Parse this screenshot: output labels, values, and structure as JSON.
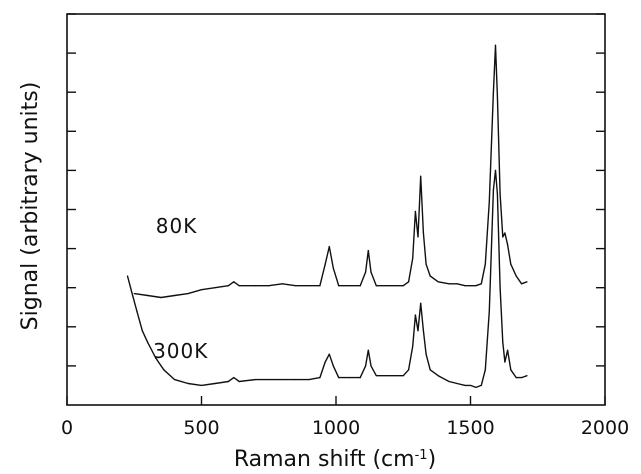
{
  "chart_data": {
    "type": "line",
    "xlabel": "Raman shift (cm",
    "xlabel_sup": "-1",
    "xlabel_close": ")",
    "ylabel": "Signal (arbitrary units)",
    "xlim": [
      0,
      2000
    ],
    "ylim": [
      0,
      100
    ],
    "x_ticks": [
      0,
      500,
      1000,
      1500,
      2000
    ],
    "x_tick_labels": [
      "0",
      "500",
      "1000",
      "1500",
      "2000"
    ],
    "y_ticks": [
      10,
      20,
      30,
      40,
      50,
      60,
      70,
      80,
      90,
      100
    ],
    "y_tick_labels_shown": false,
    "grid": false,
    "series": [
      {
        "name": "80K",
        "label_at": [
          330,
          44
        ],
        "x": [
          250,
          300,
          350,
          400,
          450,
          500,
          550,
          600,
          620,
          640,
          700,
          750,
          800,
          850,
          900,
          940,
          960,
          975,
          990,
          1010,
          1050,
          1090,
          1110,
          1120,
          1130,
          1150,
          1200,
          1250,
          1270,
          1285,
          1295,
          1305,
          1315,
          1325,
          1335,
          1350,
          1380,
          1420,
          1450,
          1480,
          1500,
          1520,
          1540,
          1555,
          1570,
          1585,
          1593,
          1600,
          1610,
          1620,
          1628,
          1638,
          1650,
          1670,
          1690,
          1710
        ],
        "y": [
          28.5,
          28,
          27.5,
          28,
          28.5,
          29.5,
          30,
          30.5,
          31.5,
          30.5,
          30.5,
          30.5,
          31,
          30.5,
          30.5,
          30.5,
          36,
          40.5,
          35,
          30.5,
          30.5,
          30.5,
          34,
          39.5,
          34,
          30.5,
          30.5,
          30.5,
          31.5,
          37.5,
          49.5,
          43,
          58.5,
          44,
          36,
          33,
          31.5,
          31,
          31,
          30.5,
          30.5,
          30.5,
          31,
          36,
          52,
          80,
          92,
          79,
          54,
          43,
          44,
          41,
          36,
          33,
          31,
          31.5
        ]
      },
      {
        "name": "300K",
        "label_at": [
          320,
          12
        ],
        "x": [
          225,
          240,
          260,
          280,
          300,
          330,
          360,
          400,
          450,
          500,
          550,
          600,
          620,
          640,
          700,
          750,
          800,
          850,
          900,
          940,
          960,
          975,
          990,
          1010,
          1050,
          1090,
          1110,
          1120,
          1130,
          1150,
          1200,
          1250,
          1270,
          1285,
          1295,
          1305,
          1315,
          1325,
          1335,
          1350,
          1380,
          1420,
          1450,
          1480,
          1500,
          1520,
          1540,
          1555,
          1570,
          1585,
          1593,
          1600,
          1610,
          1620,
          1628,
          1638,
          1650,
          1670,
          1690,
          1710
        ],
        "y": [
          33,
          29,
          24,
          19,
          16,
          12,
          9,
          6.5,
          5.5,
          5,
          5.5,
          6,
          7,
          6,
          6.5,
          6.5,
          6.5,
          6.5,
          6.5,
          7,
          11,
          13,
          10,
          7,
          7,
          7,
          10,
          14,
          10,
          7.5,
          7.5,
          7.5,
          9,
          15,
          23,
          19,
          26,
          19,
          13,
          9,
          7.5,
          6,
          5.5,
          5,
          5,
          4.5,
          5,
          9,
          24,
          55,
          60,
          54,
          30,
          16,
          11,
          14,
          9,
          7,
          7,
          7.5
        ]
      }
    ]
  }
}
